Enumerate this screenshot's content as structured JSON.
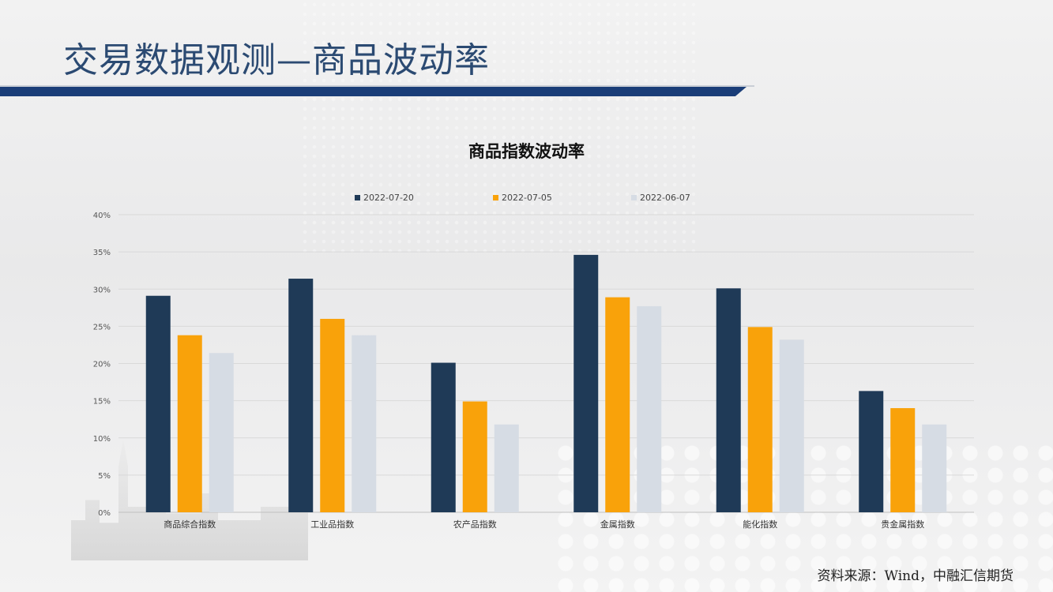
{
  "header": {
    "title": "交易数据观测—商品波动率"
  },
  "footer": {
    "source": "资料来源：Wind，中融汇信期货"
  },
  "colors": {
    "title": "#2b4a72",
    "title_bar": "#1a3d78",
    "series_1": "#1f3a57",
    "series_2": "#f9a20a",
    "series_3": "#d6dce4"
  },
  "chart_data": {
    "type": "bar",
    "title": "商品指数波动率",
    "xlabel": "",
    "ylabel": "",
    "ylim": [
      0,
      40
    ],
    "yticks": [
      "0%",
      "5%",
      "10%",
      "15%",
      "20%",
      "25%",
      "30%",
      "35%",
      "40%"
    ],
    "y_unit": "%",
    "grid": true,
    "legend_position": "top",
    "categories": [
      "商品综合指数",
      "工业品指数",
      "农产品指数",
      "金属指数",
      "能化指数",
      "贵金属指数"
    ],
    "series": [
      {
        "name": "2022-07-20",
        "color": "#1f3a57",
        "values": [
          29.1,
          31.4,
          20.1,
          34.6,
          30.1,
          16.3
        ]
      },
      {
        "name": "2022-07-05",
        "color": "#f9a20a",
        "values": [
          23.8,
          26.0,
          14.9,
          28.9,
          24.9,
          14.0
        ]
      },
      {
        "name": "2022-06-07",
        "color": "#d6dce4",
        "values": [
          21.4,
          23.8,
          11.8,
          27.7,
          23.2,
          11.8
        ]
      }
    ]
  }
}
